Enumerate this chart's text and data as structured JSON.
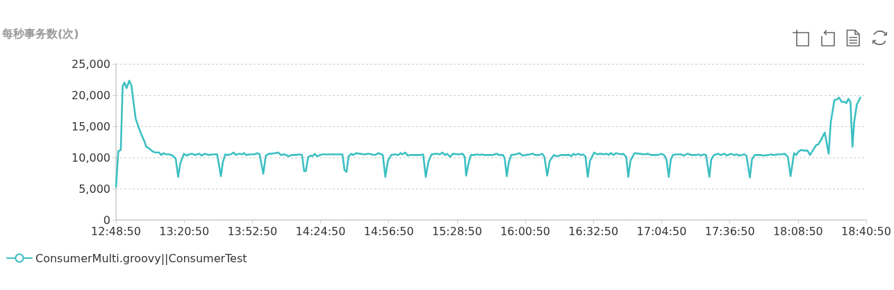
{
  "chart_data": {
    "type": "line",
    "ylabel": "每秒事务数(次)",
    "x": [
      12.814,
      12.832,
      12.851,
      12.866,
      12.88,
      12.897,
      12.917,
      12.935,
      12.948,
      12.968,
      12.997,
      13.018,
      13.034,
      13.051,
      13.07,
      13.099,
      13.119,
      13.151,
      13.167,
      13.187,
      13.203,
      13.232,
      13.256,
      13.281,
      13.3,
      13.316,
      13.345,
      13.365,
      13.386,
      13.41,
      13.431,
      13.467,
      13.483,
      13.508,
      13.54,
      13.572,
      13.605,
      13.612,
      13.634,
      13.65,
      13.669,
      13.685,
      13.71,
      13.734,
      13.751,
      13.775,
      13.799,
      13.815,
      13.831,
      13.864,
      13.896,
      13.921,
      13.937,
      13.966,
      13.985,
      14.01,
      14.034,
      14.058,
      14.082,
      14.103,
      14.131,
      14.164,
      14.188,
      14.22,
      14.249,
      14.269,
      14.285,
      14.298,
      14.317,
      14.337,
      14.35,
      14.369,
      14.385,
      14.402,
      14.423,
      14.463,
      14.512,
      14.56,
      14.585,
      14.601,
      14.617,
      14.633,
      14.654,
      14.669,
      14.69,
      14.722,
      14.755,
      14.787,
      14.836,
      14.868,
      14.9,
      14.92,
      14.941,
      14.966,
      14.998,
      15.022,
      15.039,
      15.054,
      15.075,
      15.095,
      15.119,
      15.152,
      15.192,
      15.216,
      15.236,
      15.257,
      15.281,
      15.322,
      15.346,
      15.367,
      15.386,
      15.403,
      15.427,
      15.448,
      15.492,
      15.524,
      15.541,
      15.552,
      15.573,
      15.589,
      15.613,
      15.638,
      15.662,
      15.675,
      15.695,
      15.759,
      15.792,
      15.808,
      15.84,
      15.853,
      15.87,
      15.886,
      15.905,
      15.938,
      15.97,
      15.994,
      16.018,
      16.051,
      16.075,
      16.091,
      16.124,
      16.148,
      16.164,
      16.186,
      16.205,
      16.237,
      16.261,
      16.294,
      16.359,
      16.375,
      16.391,
      16.407,
      16.431,
      16.448,
      16.464,
      16.485,
      16.503,
      16.521,
      16.553,
      16.577,
      16.602,
      16.634,
      16.65,
      16.667,
      16.683,
      16.707,
      16.723,
      16.764,
      16.78,
      16.804,
      16.82,
      16.837,
      16.869,
      16.91,
      16.942,
      16.974,
      16.999,
      17.031,
      17.055,
      17.08,
      17.104,
      17.12,
      17.136,
      17.153,
      17.169,
      17.193,
      17.233,
      17.253,
      17.282,
      17.314,
      17.347,
      17.371,
      17.387,
      17.412,
      17.428,
      17.454,
      17.469,
      17.49,
      17.509,
      17.525,
      17.542,
      17.574,
      17.59,
      17.622,
      17.647,
      17.671,
      17.687,
      17.728,
      17.744,
      17.771,
      17.787,
      17.809,
      17.849,
      17.882,
      17.914,
      17.938,
      17.955,
      17.995,
      18.019,
      18.044,
      18.068,
      18.089,
      18.116,
      18.132,
      18.154,
      18.173,
      18.198,
      18.222,
      18.241,
      18.262,
      18.29,
      18.306,
      18.327,
      18.356,
      18.387,
      18.403,
      18.432,
      18.452,
      18.468,
      18.489,
      18.514,
      18.525,
      18.541,
      18.557,
      18.573,
      18.586,
      18.607,
      18.635
    ],
    "series": [
      {
        "name": "ConsumerMulti.groovy||ConsumerTest",
        "color": "#3bbfc1",
        "values": [
          5300,
          11000,
          11200,
          21400,
          22000,
          21100,
          22300,
          21500,
          19300,
          16200,
          14500,
          13400,
          12700,
          11700,
          11500,
          11000,
          10800,
          10800,
          10400,
          10700,
          10500,
          10500,
          10300,
          9800,
          6900,
          9000,
          10600,
          10300,
          10500,
          10600,
          10400,
          10600,
          10300,
          10600,
          10400,
          10500,
          10500,
          9700,
          7000,
          9300,
          10500,
          10400,
          10500,
          10800,
          10400,
          10600,
          10500,
          10700,
          10400,
          10500,
          10500,
          10700,
          10500,
          7400,
          10300,
          10600,
          10600,
          10700,
          10800,
          10400,
          10500,
          10200,
          10400,
          10400,
          10500,
          10400,
          7800,
          7800,
          10100,
          10300,
          10200,
          10600,
          10200,
          10300,
          10500,
          10500,
          10500,
          10500,
          10500,
          8000,
          7700,
          10200,
          10600,
          10400,
          10700,
          10600,
          10500,
          10600,
          10400,
          10700,
          10400,
          6900,
          9500,
          10400,
          10500,
          10400,
          10700,
          10500,
          10800,
          10300,
          10400,
          10400,
          10400,
          10500,
          6900,
          9300,
          10500,
          10600,
          10500,
          10800,
          10400,
          10600,
          10100,
          10600,
          10500,
          10600,
          10100,
          7100,
          9300,
          10400,
          10400,
          10500,
          10400,
          10500,
          10400,
          10400,
          10600,
          10400,
          10400,
          9900,
          7000,
          9300,
          10400,
          10500,
          10700,
          10300,
          10400,
          10500,
          10600,
          10400,
          10400,
          10600,
          10100,
          7100,
          9400,
          10400,
          10200,
          10400,
          10400,
          10200,
          10600,
          10400,
          10600,
          10400,
          10500,
          10200,
          6900,
          9500,
          10800,
          10500,
          10600,
          10500,
          10600,
          10400,
          10700,
          10400,
          10700,
          10500,
          10600,
          10100,
          6900,
          9500,
          10700,
          10600,
          10500,
          10600,
          10400,
          10400,
          10400,
          10600,
          10300,
          9500,
          6900,
          9700,
          10400,
          10500,
          10500,
          10300,
          10600,
          10400,
          10400,
          10500,
          10300,
          10500,
          10400,
          6900,
          9700,
          10400,
          10500,
          10600,
          10400,
          10600,
          10300,
          10600,
          10400,
          10500,
          10300,
          10500,
          10300,
          6800,
          9700,
          10400,
          10400,
          10300,
          10400,
          10500,
          10400,
          10500,
          10500,
          10600,
          10100,
          7000,
          10700,
          10400,
          11000,
          11200,
          11100,
          11100,
          10400,
          11100,
          12000,
          12100,
          12800,
          14000,
          10600,
          15600,
          19200,
          19300,
          19600,
          18900,
          18900,
          18700,
          19400,
          18900,
          11700,
          15600,
          18500,
          19600
        ]
      }
    ],
    "xlim": [
      12.81389,
      18.68056
    ],
    "xticks": [
      {
        "value": 12.81389,
        "label": "12:48:50"
      },
      {
        "value": 13.34722,
        "label": "13:20:50"
      },
      {
        "value": 13.88056,
        "label": "13:52:50"
      },
      {
        "value": 14.41389,
        "label": "14:24:50"
      },
      {
        "value": 14.94722,
        "label": "14:56:50"
      },
      {
        "value": 15.48056,
        "label": "15:28:50"
      },
      {
        "value": 16.01389,
        "label": "16:00:50"
      },
      {
        "value": 16.54722,
        "label": "16:32:50"
      },
      {
        "value": 17.08056,
        "label": "17:04:50"
      },
      {
        "value": 17.61389,
        "label": "17:36:50"
      },
      {
        "value": 18.14722,
        "label": "18:08:50"
      },
      {
        "value": 18.68056,
        "label": "18:40:50"
      }
    ],
    "ylim": [
      0,
      25000
    ],
    "yticks": [
      0,
      {
        "value": 5000,
        "label": "5,000"
      },
      {
        "value": 10000,
        "label": "10,000"
      },
      {
        "value": 15000,
        "label": "15,000"
      },
      {
        "value": 20000,
        "label": "20,000"
      },
      {
        "value": 25000,
        "label": "25,000"
      }
    ],
    "grid": "y",
    "legend": "bottom left",
    "marker": "none",
    "line_style": "solid"
  }
}
